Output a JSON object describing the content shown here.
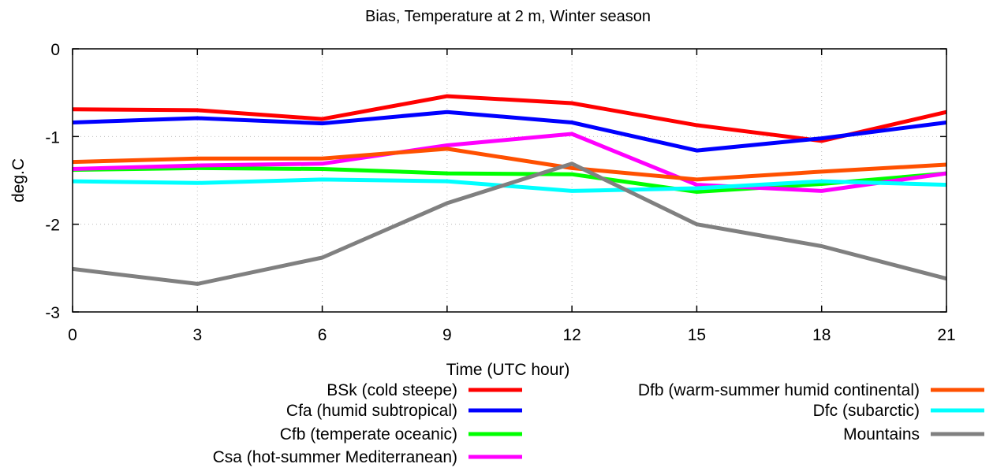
{
  "chart_data": {
    "type": "line",
    "title": "Bias, Temperature at 2 m, Winter season",
    "xlabel": "Time (UTC hour)",
    "ylabel": "deg.C",
    "x": [
      0,
      3,
      6,
      9,
      12,
      15,
      18,
      21
    ],
    "xlim": [
      0,
      21
    ],
    "ylim": [
      -3,
      0
    ],
    "yticks": [
      0,
      -1,
      -2,
      -3
    ],
    "grid": true,
    "legend_position": "bottom",
    "series": [
      {
        "name": "BSk (cold steepe)",
        "color": "#ff0000",
        "values": [
          -0.69,
          -0.7,
          -0.8,
          -0.54,
          -0.62,
          -0.87,
          -1.05,
          -0.72
        ]
      },
      {
        "name": "Cfa (humid subtropical)",
        "color": "#0000ff",
        "values": [
          -0.84,
          -0.79,
          -0.85,
          -0.72,
          -0.84,
          -1.16,
          -1.02,
          -0.84
        ]
      },
      {
        "name": "Cfb (temperate oceanic)",
        "color": "#00ff00",
        "values": [
          -1.38,
          -1.36,
          -1.37,
          -1.42,
          -1.43,
          -1.63,
          -1.54,
          -1.42
        ]
      },
      {
        "name": "Csa (hot-summer Mediterranean)",
        "color": "#ff00ff",
        "values": [
          -1.37,
          -1.33,
          -1.31,
          -1.1,
          -0.97,
          -1.55,
          -1.62,
          -1.42
        ]
      },
      {
        "name": "Dfb (warm-summer humid continental)",
        "color": "#ff5000",
        "values": [
          -1.29,
          -1.25,
          -1.25,
          -1.14,
          -1.36,
          -1.49,
          -1.4,
          -1.32
        ]
      },
      {
        "name": "Dfc (subarctic)",
        "color": "#00ffff",
        "values": [
          -1.51,
          -1.53,
          -1.49,
          -1.51,
          -1.62,
          -1.59,
          -1.51,
          -1.55
        ]
      },
      {
        "name": "Mountains",
        "color": "#808080",
        "values": [
          -2.51,
          -2.68,
          -2.38,
          -1.76,
          -1.31,
          -2.0,
          -2.25,
          -2.62
        ]
      }
    ]
  }
}
